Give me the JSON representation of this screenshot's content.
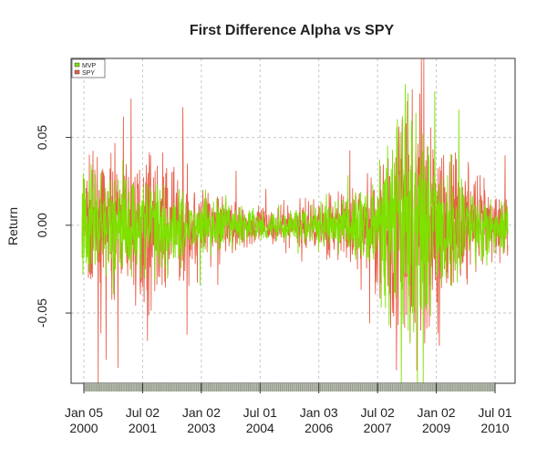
{
  "chart_data": {
    "type": "line",
    "title": "First Difference Alpha vs SPY",
    "ylabel": "Return",
    "xlabel": "",
    "ylim": [
      -0.09,
      0.095
    ],
    "grid": true,
    "legend_position": "top-left",
    "yticks": [
      {
        "value": 0.05,
        "label": "0.05"
      },
      {
        "value": 0.0,
        "label": "0.00"
      },
      {
        "value": -0.05,
        "label": "-0.05"
      }
    ],
    "xticks": [
      {
        "line1": "Jan 05",
        "line2": "2000"
      },
      {
        "line1": "Jul 02",
        "line2": "2001"
      },
      {
        "line1": "Jan 02",
        "line2": "2003"
      },
      {
        "line1": "Jul 01",
        "line2": "2004"
      },
      {
        "line1": "Jan 03",
        "line2": "2006"
      },
      {
        "line1": "Jul 02",
        "line2": "2007"
      },
      {
        "line1": "Jan 02",
        "line2": "2009"
      },
      {
        "line1": "Jul 01",
        "line2": "2010"
      }
    ],
    "series": [
      {
        "name": "SPY",
        "color": "#e8604c",
        "volatility_profile": [
          0.022,
          0.02,
          0.025,
          0.02,
          0.012,
          0.007,
          0.006,
          0.009,
          0.012,
          0.02,
          0.06,
          0.028,
          0.016,
          0.01
        ]
      },
      {
        "name": "MVP",
        "color": "#7ee100",
        "volatility_profile": [
          0.02,
          0.018,
          0.017,
          0.013,
          0.009,
          0.006,
          0.005,
          0.007,
          0.01,
          0.016,
          0.045,
          0.02,
          0.013,
          0.009
        ]
      }
    ],
    "legend": [
      {
        "name": "MVP",
        "color": "#7ee100"
      },
      {
        "name": "SPY",
        "color": "#e8604c"
      }
    ],
    "colors": {
      "grid": "#c8c8c8",
      "axis": "#333333",
      "tick_fill": "#b8bfb0"
    }
  }
}
